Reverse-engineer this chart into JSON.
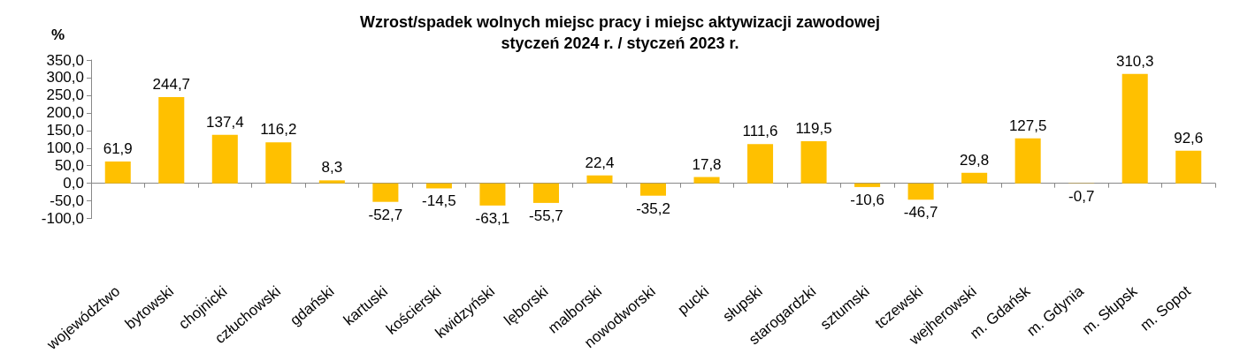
{
  "chart_data": {
    "type": "bar",
    "title": "Wzrost/spadek wolnych miejsc pracy i miejsc aktywizacji zawodowej\nstyczeń 2024 r. / styczeń 2023 r.",
    "ylabel": "%",
    "categories": [
      "województwo",
      "bytowski",
      "chojnicki",
      "człuchowski",
      "gdański",
      "kartuski",
      "kościerski",
      "kwidzyński",
      "lęborski",
      "malborski",
      "nowodworski",
      "pucki",
      "słupski",
      "starogardzki",
      "sztumski",
      "tczewski",
      "wejherowski",
      "m. Gdańsk",
      "m. Gdynia",
      "m. Słupsk",
      "m. Sopot"
    ],
    "values": [
      61.9,
      244.7,
      137.4,
      116.2,
      8.3,
      -52.7,
      -14.5,
      -63.1,
      -55.7,
      22.4,
      -35.2,
      17.8,
      111.6,
      119.5,
      -10.6,
      -46.7,
      29.8,
      127.5,
      -0.7,
      310.3,
      92.6
    ],
    "value_labels": [
      "61,9",
      "244,7",
      "137,4",
      "116,2",
      "8,3",
      "-52,7",
      "-14,5",
      "-63,1",
      "-55,7",
      "22,4",
      "-35,2",
      "17,8",
      "111,6",
      "119,5",
      "-10,6",
      "-46,7",
      "29,8",
      "127,5",
      "-0,7",
      "310,3",
      "92,6"
    ],
    "color": "#ffc000",
    "yticks": [
      {
        "value": -100,
        "label": "-100,0"
      },
      {
        "value": -50,
        "label": "-50,0"
      },
      {
        "value": 0,
        "label": "0,0"
      },
      {
        "value": 50,
        "label": "50,0"
      },
      {
        "value": 100,
        "label": "100,0"
      },
      {
        "value": 150,
        "label": "150,0"
      },
      {
        "value": 200,
        "label": "200,0"
      },
      {
        "value": 250,
        "label": "250,0"
      },
      {
        "value": 300,
        "label": "300,0"
      },
      {
        "value": 350,
        "label": "350,0"
      }
    ],
    "ylim": [
      -100,
      350
    ]
  }
}
